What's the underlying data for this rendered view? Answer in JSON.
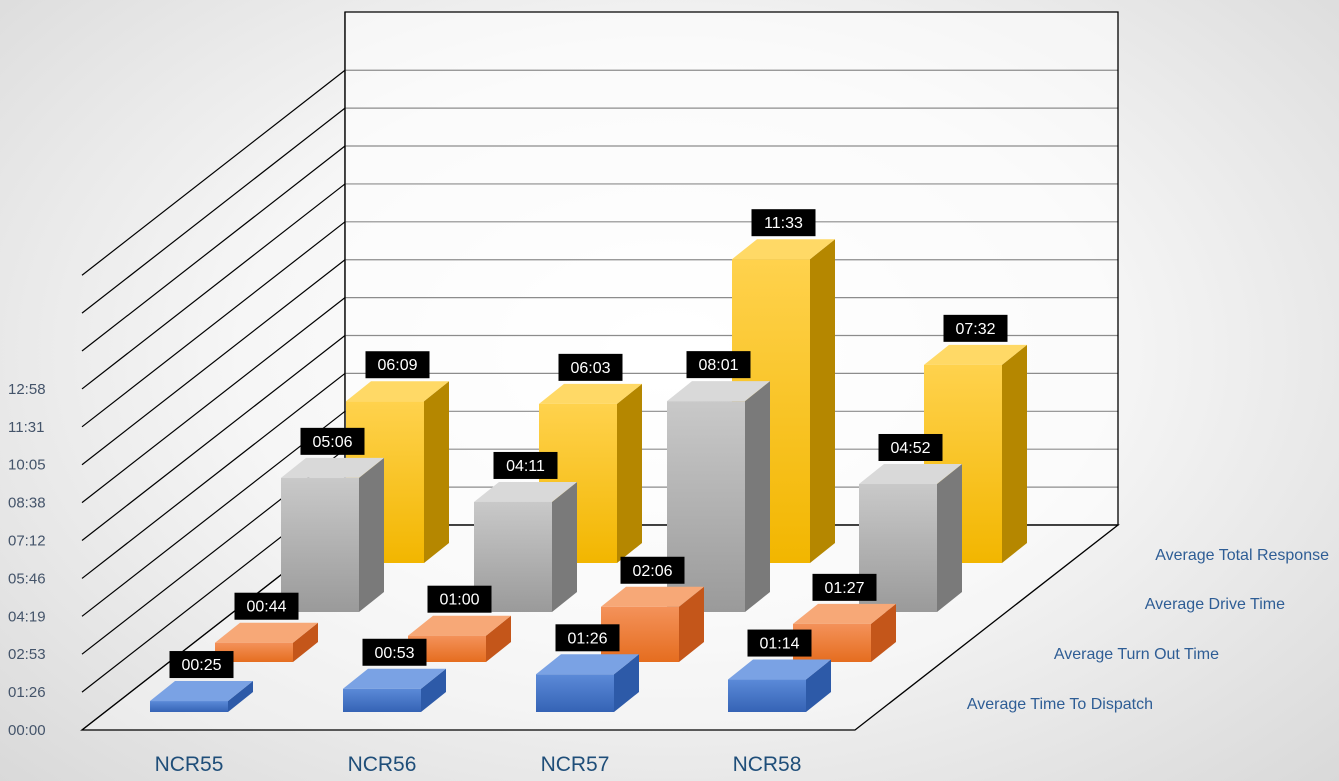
{
  "chart_data": {
    "type": "bar",
    "chart_style": "3d-column",
    "title": "",
    "categories": [
      "NCR55",
      "NCR56",
      "NCR57",
      "NCR58"
    ],
    "y_ticks": [
      "00:00",
      "01:26",
      "02:53",
      "04:19",
      "05:46",
      "07:12",
      "08:38",
      "10:05",
      "11:31",
      "12:58"
    ],
    "y_unit": "mm:ss",
    "ylim_seconds": [
      0,
      778
    ],
    "grid": true,
    "series": [
      {
        "name": "Average Time To Dispatch",
        "color": "#4472c4",
        "values": [
          "00:25",
          "00:53",
          "01:26",
          "01:14"
        ],
        "values_seconds": [
          25,
          53,
          86,
          74
        ]
      },
      {
        "name": "Average Turn Out Time",
        "color": "#ed7d31",
        "values": [
          "00:44",
          "01:00",
          "02:06",
          "01:27"
        ],
        "values_seconds": [
          44,
          60,
          126,
          87
        ]
      },
      {
        "name": "Average Drive Time",
        "color": "#a5a5a5",
        "values": [
          "05:06",
          "04:11",
          "08:01",
          "04:52"
        ],
        "values_seconds": [
          306,
          251,
          481,
          292
        ]
      },
      {
        "name": "Average Total Response",
        "color": "#ffc000",
        "values": [
          "06:09",
          "06:03",
          "11:33",
          "07:32"
        ],
        "values_seconds": [
          369,
          363,
          693,
          452
        ]
      }
    ]
  }
}
